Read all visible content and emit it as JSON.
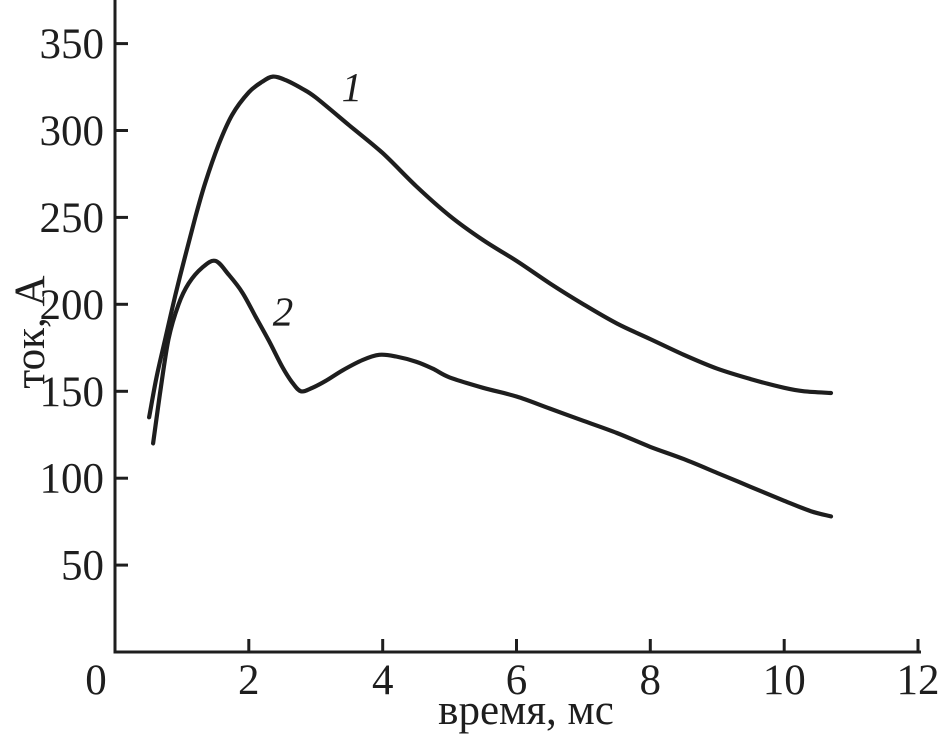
{
  "figure": {
    "background_color": "#ffffff",
    "ink_color": "#1e1e1e"
  },
  "chart_data": {
    "type": "line",
    "title": "",
    "xlabel": "время, мс",
    "ylabel": "ток, А",
    "xlim": [
      0,
      12
    ],
    "ylim": [
      0,
      375
    ],
    "x_ticks": [
      0,
      2,
      4,
      6,
      8,
      10,
      12
    ],
    "y_ticks": [
      50,
      100,
      150,
      200,
      250,
      300,
      350
    ],
    "grid": false,
    "legend_position": "inline-curve-labels",
    "series": [
      {
        "name": "curve-1",
        "label": "1",
        "label_pos": {
          "x": 3.54,
          "y": 325
        },
        "points": [
          [
            0.51,
            135
          ],
          [
            0.62,
            158
          ],
          [
            0.75,
            180
          ],
          [
            0.9,
            205
          ],
          [
            1.05,
            228
          ],
          [
            1.2,
            250
          ],
          [
            1.35,
            270
          ],
          [
            1.55,
            292
          ],
          [
            1.75,
            309
          ],
          [
            2.0,
            322
          ],
          [
            2.2,
            328
          ],
          [
            2.36,
            331
          ],
          [
            2.55,
            329
          ],
          [
            2.8,
            324
          ],
          [
            3.0,
            319
          ],
          [
            3.5,
            303
          ],
          [
            4.0,
            287
          ],
          [
            4.5,
            268
          ],
          [
            5.0,
            251
          ],
          [
            5.5,
            237
          ],
          [
            6.0,
            225
          ],
          [
            6.5,
            212
          ],
          [
            7.0,
            200
          ],
          [
            7.5,
            189
          ],
          [
            8.0,
            180
          ],
          [
            8.5,
            171
          ],
          [
            9.0,
            163
          ],
          [
            9.5,
            157
          ],
          [
            10.0,
            152
          ],
          [
            10.3,
            150
          ],
          [
            10.7,
            149
          ]
        ]
      },
      {
        "name": "curve-2",
        "label": "2",
        "label_pos": {
          "x": 2.51,
          "y": 196
        },
        "points": [
          [
            0.57,
            120
          ],
          [
            0.67,
            148
          ],
          [
            0.8,
            180
          ],
          [
            0.95,
            200
          ],
          [
            1.1,
            212
          ],
          [
            1.3,
            221
          ],
          [
            1.5,
            225
          ],
          [
            1.7,
            217
          ],
          [
            1.9,
            207
          ],
          [
            2.1,
            193
          ],
          [
            2.3,
            179
          ],
          [
            2.5,
            164
          ],
          [
            2.65,
            155
          ],
          [
            2.78,
            150
          ],
          [
            2.95,
            152
          ],
          [
            3.15,
            156
          ],
          [
            3.4,
            162
          ],
          [
            3.7,
            168
          ],
          [
            3.95,
            171
          ],
          [
            4.2,
            170
          ],
          [
            4.5,
            167
          ],
          [
            4.75,
            163
          ],
          [
            5.0,
            158
          ],
          [
            5.5,
            152
          ],
          [
            6.0,
            147
          ],
          [
            6.5,
            140
          ],
          [
            7.0,
            133
          ],
          [
            7.5,
            126
          ],
          [
            8.0,
            118
          ],
          [
            8.5,
            111
          ],
          [
            9.0,
            103
          ],
          [
            9.5,
            95
          ],
          [
            10.0,
            87
          ],
          [
            10.4,
            81
          ],
          [
            10.7,
            78
          ]
        ]
      }
    ]
  }
}
